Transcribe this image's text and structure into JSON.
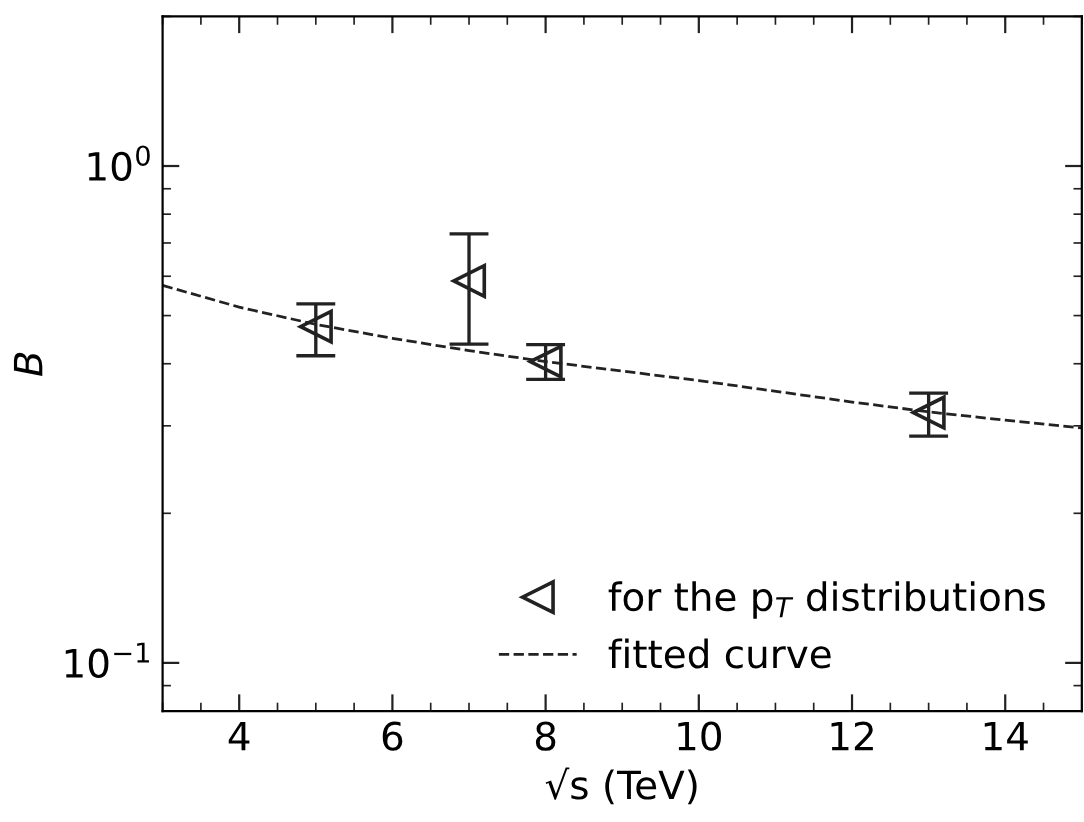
{
  "chart_data": {
    "type": "scatter",
    "xlabel": "√s (TeV)",
    "ylabel": "B",
    "log": "y",
    "xlim": [
      3,
      15
    ],
    "ylim": [
      0.08,
      2
    ],
    "xticks": [
      4,
      6,
      8,
      10,
      12,
      14
    ],
    "yticks": [
      {
        "value": 0.1,
        "label": "10$^{−1}$"
      },
      {
        "value": 1,
        "label": "10$^{0}$"
      }
    ],
    "grid": false,
    "legend": "lower right",
    "series": [
      {
        "name": "for the p$_{T}$ distributions",
        "marker": "triangle",
        "color": "#222222",
        "x": [
          5,
          7,
          8,
          13
        ],
        "values": [
          0.475,
          0.587,
          0.404,
          0.319
        ],
        "errors": [
          [
            0.415,
            0.528
          ],
          [
            0.438,
            0.73
          ],
          [
            0.372,
            0.437
          ],
          [
            0.286,
            0.349
          ]
        ]
      },
      {
        "name": "fitted curve",
        "type": "line",
        "line_style": "dashed",
        "marker": "none",
        "color": "#222222",
        "x": [
          3,
          4,
          5,
          6,
          7,
          8,
          10,
          12,
          13,
          14,
          15
        ],
        "values": [
          0.575,
          0.52,
          0.48,
          0.45,
          0.425,
          0.404,
          0.37,
          0.335,
          0.32,
          0.308,
          0.297
        ]
      }
    ]
  }
}
